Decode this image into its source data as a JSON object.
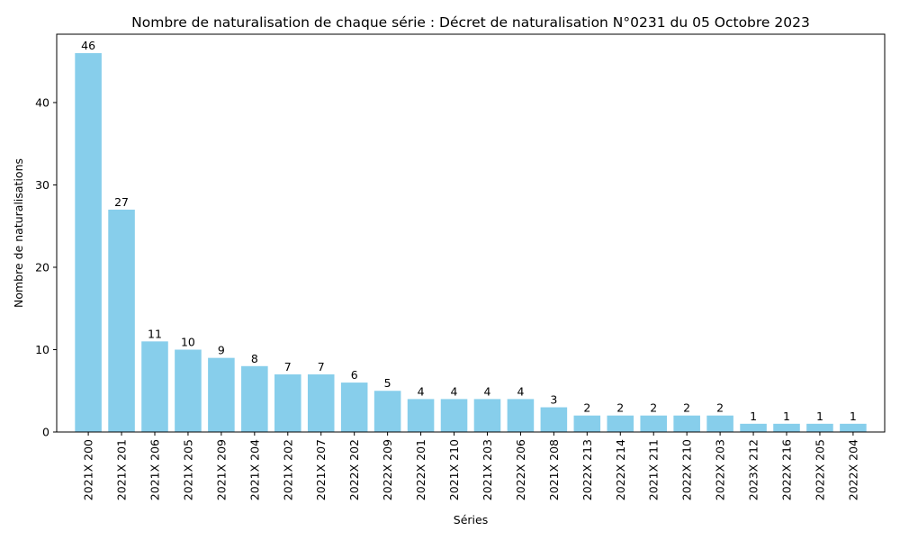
{
  "chart_data": {
    "type": "bar",
    "title": "Nombre de naturalisation de chaque série : Décret de naturalisation N°0231 du 05 Octobre 2023",
    "xlabel": "Séries",
    "ylabel": "Nombre de naturalisations",
    "categories": [
      "2021X 200",
      "2021X 201",
      "2021X 206",
      "2021X 205",
      "2021X 209",
      "2021X 204",
      "2021X 202",
      "2021X 207",
      "2022X 202",
      "2022X 209",
      "2022X 201",
      "2021X 210",
      "2021X 203",
      "2022X 206",
      "2021X 208",
      "2022X 213",
      "2022X 214",
      "2021X 211",
      "2022X 210",
      "2022X 203",
      "2023X 212",
      "2022X 216",
      "2022X 205",
      "2022X 204"
    ],
    "values": [
      46,
      27,
      11,
      10,
      9,
      8,
      7,
      7,
      6,
      5,
      4,
      4,
      4,
      4,
      3,
      2,
      2,
      2,
      2,
      2,
      1,
      1,
      1,
      1
    ],
    "ylim": [
      0,
      48.3
    ],
    "yticks": [
      0,
      10,
      20,
      30,
      40
    ],
    "bar_color": "#87CEEB",
    "grid": false,
    "legend": "none"
  }
}
